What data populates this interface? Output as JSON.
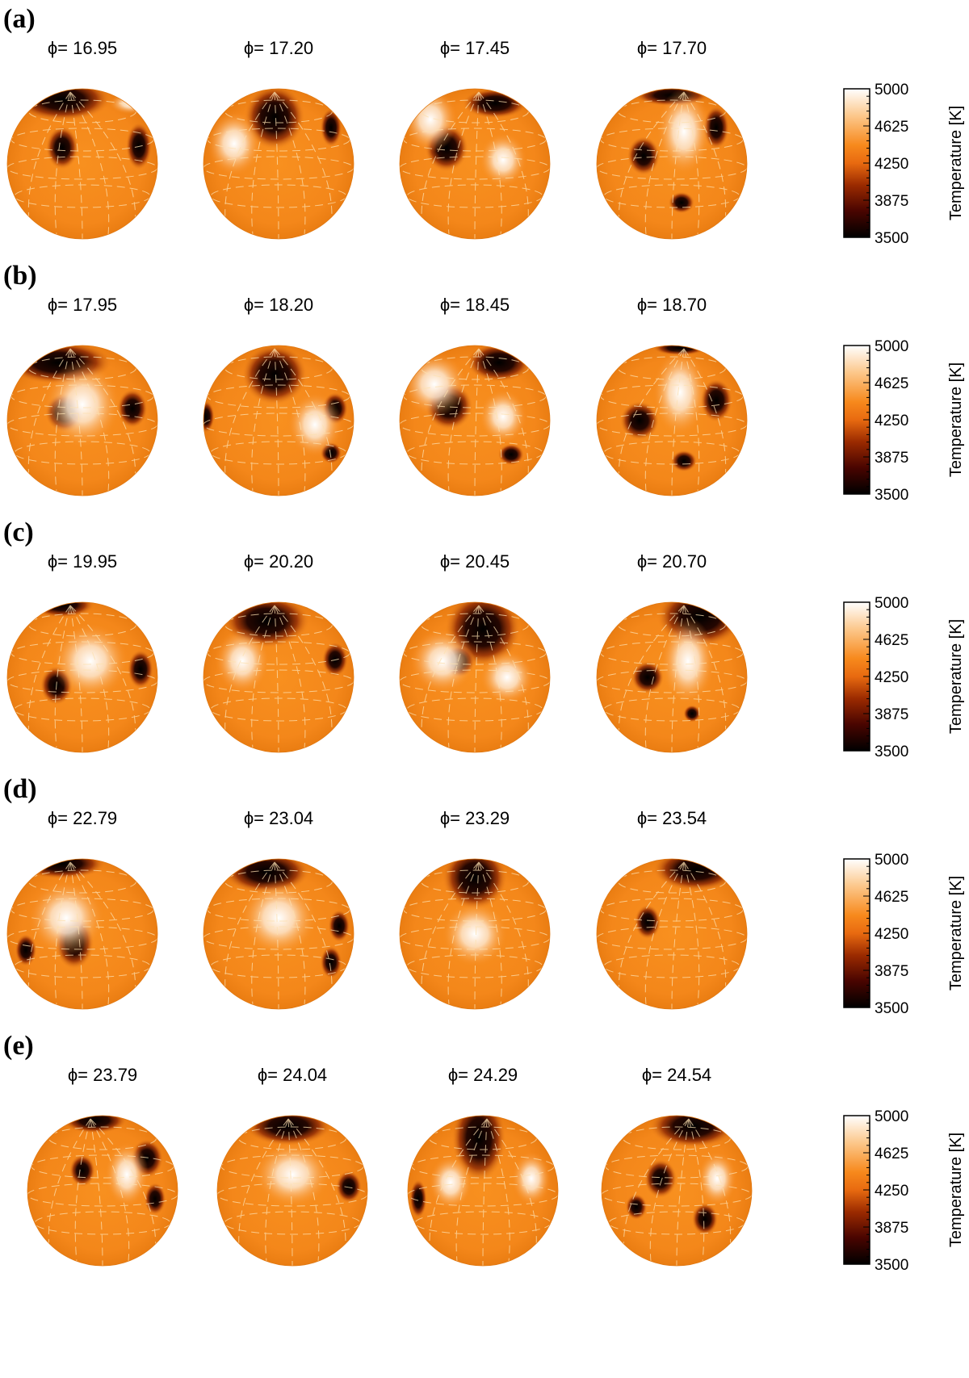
{
  "figure": {
    "colorbar": {
      "title": "Temperature [K]",
      "ticks": [
        "5000",
        "4625",
        "4250",
        "3875",
        "3500"
      ],
      "vmin": 3500,
      "vmax": 5000,
      "colormap": [
        "#000000",
        "#4a0500",
        "#9a2a00",
        "#e86a10",
        "#f7891c",
        "#fcc88c",
        "#ffffff"
      ]
    },
    "photosphere_color": "#f7891c",
    "panels": [
      {
        "label": "(a)",
        "phases": [
          "ϕ= 16.95",
          "ϕ= 17.20",
          "ϕ= 17.45",
          "ϕ= 17.70"
        ]
      },
      {
        "label": "(b)",
        "phases": [
          "ϕ= 17.95",
          "ϕ= 18.20",
          "ϕ= 18.45",
          "ϕ= 18.70"
        ]
      },
      {
        "label": "(c)",
        "phases": [
          "ϕ= 19.95",
          "ϕ= 20.20",
          "ϕ= 20.45",
          "ϕ= 20.70"
        ]
      },
      {
        "label": "(d)",
        "phases": [
          "ϕ= 22.79",
          "ϕ= 23.04",
          "ϕ= 23.29",
          "ϕ= 23.54"
        ]
      },
      {
        "label": "(e)",
        "phases": [
          "ϕ= 23.79",
          "ϕ= 24.04",
          "ϕ= 24.29",
          "ϕ= 24.54"
        ]
      }
    ]
  }
}
